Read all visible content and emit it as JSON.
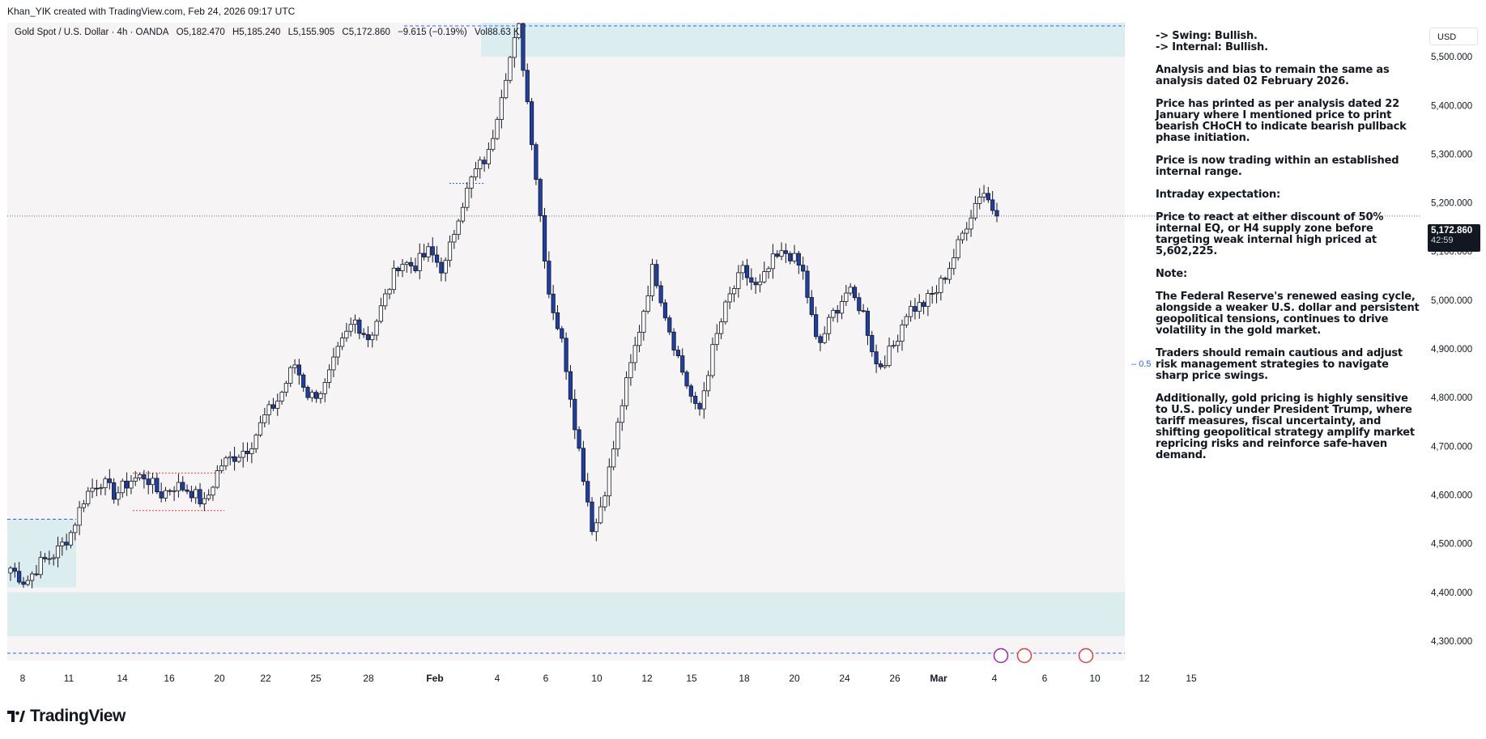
{
  "header": {
    "credit": "Khan_YIK created with TradingView.com, Feb 24, 2026 09:17 UTC"
  },
  "legend": {
    "symbol": "Gold Spot / U.S. Dollar · 4h · OANDA",
    "open": "O5,182.470",
    "high": "H5,185.240",
    "low": "L5,155.905",
    "close": "C5,172.860",
    "change": "−9.615 (−0.19%)",
    "volume": "Vol88.63 K"
  },
  "currency": "USD",
  "last_price": {
    "price": "5,172.860",
    "countdown": "42:59"
  },
  "fib_label": "0.5",
  "annotation": [
    "-> Swing:  Bullish.\n-> Internal:  Bullish.",
    "Analysis and bias to remain the same as analysis dated 02 February 2026.",
    "Price has printed as per analysis dated 22 January where I mentioned price to print bearish CHoCH to indicate bearish pullback phase initiation.",
    "Price is now trading within an established internal range.",
    "Intraday expectation:",
    "Price to react at either discount of 50% internal EQ, or H4 supply zone before targeting weak internal high priced at 5,602,225.",
    "Note:",
    "The Federal Reserve's renewed easing cycle, alongside a weaker U.S. dollar and persistent geopolitical tensions, continues to drive volatility in the gold market.",
    "Traders should remain cautious and adjust risk management strategies to navigate sharp price swings.",
    "Additionally, gold pricing is highly sensitive to U.S. policy under President Trump, where tariff measures, fiscal uncertainty, and shifting geopolitical strategy amplify market repricing risks and reinforce safe-haven demand."
  ],
  "footer": {
    "brand": "TradingView"
  },
  "colors": {
    "bull": "#ffffff",
    "bear": "#1e3fa8",
    "zone": "#dcedf0",
    "accent": "#2962ff",
    "plot_bg": "#f6f4f5"
  },
  "chart_data": {
    "type": "candlestick",
    "ylim": [
      4260,
      5570
    ],
    "y_ticks": [
      {
        "value": 5500,
        "label": "5,500.000"
      },
      {
        "value": 5400,
        "label": "5,400.000"
      },
      {
        "value": 5300,
        "label": "5,300.000"
      },
      {
        "value": 5200,
        "label": "5,200.000"
      },
      {
        "value": 5100,
        "label": "5,100.000"
      },
      {
        "value": 5000,
        "label": "5,000.000"
      },
      {
        "value": 4900,
        "label": "4,900.000"
      },
      {
        "value": 4800,
        "label": "4,800.000"
      },
      {
        "value": 4700,
        "label": "4,700.000"
      },
      {
        "value": 4600,
        "label": "4,600.000"
      },
      {
        "value": 4500,
        "label": "4,500.000"
      },
      {
        "value": 4400,
        "label": "4,400.000"
      },
      {
        "value": 4300,
        "label": "4,300.000"
      }
    ],
    "x_ticks": [
      "8",
      "11",
      "14",
      "16",
      "20",
      "22",
      "25",
      "28",
      "Feb",
      "4",
      "6",
      "10",
      "12",
      "15",
      "18",
      "20",
      "24",
      "26",
      "Mar",
      "4",
      "6",
      "10",
      "12",
      "15"
    ],
    "last_close": 5172.86,
    "zones": [
      {
        "name": "supply-zone",
        "top": 5570,
        "bottom": 5500
      },
      {
        "name": "demand-zone-left",
        "top": 4550,
        "bottom": 4410
      },
      {
        "name": "demand-zone",
        "top": 4400,
        "bottom": 4310
      }
    ],
    "key_levels": [
      {
        "name": "weak-high",
        "value": 5602
      },
      {
        "name": "strong-low",
        "value": 4275
      },
      {
        "name": "internal-eq",
        "value": 4935
      }
    ],
    "anchors": [
      4450,
      4420,
      4460,
      4480,
      4520,
      4600,
      4630,
      4600,
      4630,
      4640,
      4600,
      4620,
      4610,
      4580,
      4660,
      4680,
      4700,
      4760,
      4800,
      4870,
      4800,
      4820,
      4900,
      4960,
      4920,
      5000,
      5080,
      5070,
      5100,
      5060,
      5180,
      5260,
      5300,
      5450,
      5560,
      5300,
      5020,
      4900,
      4700,
      4520,
      4640,
      4800,
      4930,
      5070,
      4950,
      4850,
      4760,
      4900,
      5000,
      5060,
      5020,
      5080,
      5100,
      5060,
      4900,
      4970,
      5020,
      4980,
      4860,
      4900,
      4980,
      4990,
      5020,
      5080,
      5160,
      5230,
      5172.86
    ]
  }
}
